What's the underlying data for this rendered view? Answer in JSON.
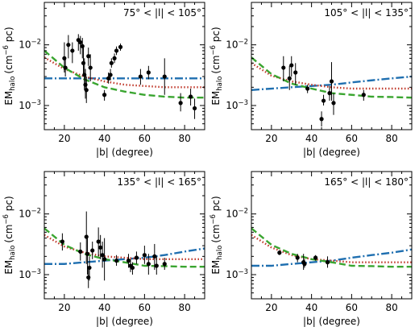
{
  "chart_data": [
    {
      "type": "scatter",
      "title": "75° < |l| < 105°",
      "xlabel": "|b| (degree)",
      "ylabel": "EM_halo (cm^-6 pc)",
      "ylabel_main": "EM",
      "ylabel_sub": "halo",
      "ylabel_units": "(cm",
      "ylabel_exp": "−6",
      "ylabel_tail": " pc)",
      "x_scale": "linear",
      "y_scale": "log",
      "xlim": [
        10,
        90
      ],
      "ylim": [
        0.0004,
        0.05
      ],
      "xticks": [
        20,
        40,
        60,
        80
      ],
      "xtick_labels": [
        "20",
        "40",
        "60",
        "80"
      ],
      "yticks": [
        0.001,
        0.01
      ],
      "ytick_base": "10",
      "ytick_exps": [
        "−3",
        "−2"
      ],
      "points": [
        {
          "x": 20,
          "y": 0.006,
          "lo": 0.0035,
          "hi": 0.011
        },
        {
          "x": 20.5,
          "y": 0.0042,
          "lo": 0.003,
          "hi": 0.006
        },
        {
          "x": 22,
          "y": 0.01,
          "lo": 0.006,
          "hi": 0.0145
        },
        {
          "x": 24,
          "y": 0.008,
          "lo": 0.005,
          "hi": 0.011
        },
        {
          "x": 27,
          "y": 0.012,
          "lo": 0.008,
          "hi": 0.015
        },
        {
          "x": 28,
          "y": 0.011,
          "lo": 0.007,
          "hi": 0.014
        },
        {
          "x": 29,
          "y": 0.0095,
          "lo": 0.006,
          "hi": 0.013
        },
        {
          "x": 29.5,
          "y": 0.005,
          "lo": 0.003,
          "hi": 0.009
        },
        {
          "x": 30,
          "y": 0.0032,
          "lo": 0.0018,
          "hi": 0.006
        },
        {
          "x": 30.5,
          "y": 0.0022,
          "lo": 0.0013,
          "hi": 0.004
        },
        {
          "x": 31,
          "y": 0.0018,
          "lo": 0.0011,
          "hi": 0.003
        },
        {
          "x": 32,
          "y": 0.0065,
          "lo": 0.0045,
          "hi": 0.009
        },
        {
          "x": 33,
          "y": 0.0042,
          "lo": 0.0025,
          "hi": 0.007
        },
        {
          "x": 40,
          "y": 0.0015,
          "lo": 0.0012,
          "hi": 0.0018
        },
        {
          "x": 42,
          "y": 0.0028,
          "lo": 0.0023,
          "hi": 0.0035
        },
        {
          "x": 43,
          "y": 0.0032,
          "lo": 0.0026,
          "hi": 0.004
        },
        {
          "x": 43.5,
          "y": 0.005,
          "lo": 0.0042,
          "hi": 0.006
        },
        {
          "x": 45,
          "y": 0.006,
          "lo": 0.005,
          "hi": 0.0072
        },
        {
          "x": 46,
          "y": 0.008,
          "lo": 0.0068,
          "hi": 0.0094
        },
        {
          "x": 48,
          "y": 0.0092,
          "lo": 0.008,
          "hi": 0.0105
        },
        {
          "x": 58,
          "y": 0.003,
          "lo": 0.0022,
          "hi": 0.004
        },
        {
          "x": 62,
          "y": 0.0035,
          "lo": 0.0027,
          "hi": 0.0045
        },
        {
          "x": 70,
          "y": 0.003,
          "lo": 0.0015,
          "hi": 0.006
        },
        {
          "x": 78,
          "y": 0.0011,
          "lo": 0.0008,
          "hi": 0.0016
        },
        {
          "x": 83,
          "y": 0.0014,
          "lo": 0.001,
          "hi": 0.0019
        },
        {
          "x": 85,
          "y": 0.0009,
          "lo": 0.0006,
          "hi": 0.0013
        }
      ],
      "model_lines": [
        {
          "style": "dash-dot",
          "color": "#1f6fb0",
          "y": [
            0.0028,
            0.0028,
            0.0028,
            0.0028,
            0.0028,
            0.0028,
            0.0028,
            0.0028,
            0.0028
          ]
        },
        {
          "style": "dotted",
          "color": "#c0392b",
          "y": [
            0.0062,
            0.004,
            0.003,
            0.0025,
            0.0022,
            0.0021,
            0.002,
            0.002,
            0.002
          ]
        },
        {
          "style": "dashed",
          "color": "#3aa530",
          "y": [
            0.008,
            0.0042,
            0.0027,
            0.002,
            0.0017,
            0.0015,
            0.0014,
            0.00135,
            0.00135
          ]
        }
      ]
    },
    {
      "type": "scatter",
      "title": "105° < |l| < 135°",
      "xlabel": "|b| (degree)",
      "ylabel": "EM_halo (cm^-6 pc)",
      "ylabel_main": "EM",
      "ylabel_sub": "halo",
      "ylabel_units": "(cm",
      "ylabel_exp": "−6",
      "ylabel_tail": " pc)",
      "x_scale": "linear",
      "y_scale": "log",
      "xlim": [
        10,
        90
      ],
      "ylim": [
        0.0004,
        0.05
      ],
      "xticks": [
        20,
        40,
        60,
        80
      ],
      "xtick_labels": [
        "20",
        "40",
        "60",
        "80"
      ],
      "yticks": [
        0.001,
        0.01
      ],
      "ytick_base": "10",
      "ytick_exps": [
        "−3",
        "−2"
      ],
      "points": [
        {
          "x": 26,
          "y": 0.0042,
          "lo": 0.0025,
          "hi": 0.0065
        },
        {
          "x": 29,
          "y": 0.0028,
          "lo": 0.0018,
          "hi": 0.0045
        },
        {
          "x": 30,
          "y": 0.0046,
          "lo": 0.003,
          "hi": 0.0065
        },
        {
          "x": 32,
          "y": 0.0035,
          "lo": 0.0022,
          "hi": 0.005
        },
        {
          "x": 38,
          "y": 0.0019,
          "lo": 0.0016,
          "hi": 0.0022
        },
        {
          "x": 45,
          "y": 0.0006,
          "lo": 0.00045,
          "hi": 0.0008
        },
        {
          "x": 46,
          "y": 0.0012,
          "lo": 0.001,
          "hi": 0.0015
        },
        {
          "x": 49,
          "y": 0.0016,
          "lo": 0.0012,
          "hi": 0.0021
        },
        {
          "x": 50,
          "y": 0.0025,
          "lo": 0.0012,
          "hi": 0.0052
        },
        {
          "x": 51,
          "y": 0.0011,
          "lo": 0.0007,
          "hi": 0.0016
        },
        {
          "x": 66,
          "y": 0.0015,
          "lo": 0.0012,
          "hi": 0.0018
        }
      ],
      "model_lines": [
        {
          "style": "dash-dot",
          "color": "#1f6fb0",
          "y": [
            0.0018,
            0.0019,
            0.002,
            0.0021,
            0.0022,
            0.0024,
            0.0026,
            0.0028,
            0.003
          ]
        },
        {
          "style": "dotted",
          "color": "#c0392b",
          "y": [
            0.005,
            0.0031,
            0.0025,
            0.0022,
            0.002,
            0.0019,
            0.0019,
            0.0019,
            0.0019
          ]
        },
        {
          "style": "dashed",
          "color": "#3aa530",
          "y": [
            0.0062,
            0.0033,
            0.0023,
            0.0019,
            0.0016,
            0.0015,
            0.0014,
            0.00138,
            0.00135
          ]
        }
      ]
    },
    {
      "type": "scatter",
      "title": "135° < |l| < 165°",
      "xlabel": "|b| (degree)",
      "ylabel": "EM_halo (cm^-6 pc)",
      "ylabel_main": "EM",
      "ylabel_sub": "halo",
      "ylabel_units": "(cm",
      "ylabel_exp": "−6",
      "ylabel_tail": " pc)",
      "x_scale": "linear",
      "y_scale": "log",
      "xlim": [
        10,
        90
      ],
      "ylim": [
        0.0004,
        0.05
      ],
      "xticks": [
        20,
        40,
        60,
        80
      ],
      "xtick_labels": [
        "20",
        "40",
        "60",
        "80"
      ],
      "yticks": [
        0.001,
        0.01
      ],
      "ytick_base": "10",
      "ytick_exps": [
        "−3",
        "−2"
      ],
      "points": [
        {
          "x": 19,
          "y": 0.0035,
          "lo": 0.0025,
          "hi": 0.0048
        },
        {
          "x": 28,
          "y": 0.0024,
          "lo": 0.0017,
          "hi": 0.0034
        },
        {
          "x": 31,
          "y": 0.0042,
          "lo": 0.0015,
          "hi": 0.011
        },
        {
          "x": 31.5,
          "y": 0.0022,
          "lo": 0.001,
          "hi": 0.0045
        },
        {
          "x": 32,
          "y": 0.0009,
          "lo": 0.0006,
          "hi": 0.0013
        },
        {
          "x": 32.5,
          "y": 0.0013,
          "lo": 0.0008,
          "hi": 0.002
        },
        {
          "x": 34,
          "y": 0.0025,
          "lo": 0.0018,
          "hi": 0.0035
        },
        {
          "x": 37,
          "y": 0.0035,
          "lo": 0.002,
          "hi": 0.006
        },
        {
          "x": 38,
          "y": 0.0028,
          "lo": 0.0018,
          "hi": 0.0045
        },
        {
          "x": 39,
          "y": 0.0021,
          "lo": 0.0013,
          "hi": 0.0035
        },
        {
          "x": 40,
          "y": 0.0018,
          "lo": 0.0008,
          "hi": 0.004
        },
        {
          "x": 46,
          "y": 0.0017,
          "lo": 0.0014,
          "hi": 0.0021
        },
        {
          "x": 52,
          "y": 0.0017,
          "lo": 0.0013,
          "hi": 0.0022
        },
        {
          "x": 53,
          "y": 0.0014,
          "lo": 0.0011,
          "hi": 0.0018
        },
        {
          "x": 54,
          "y": 0.0013,
          "lo": 0.001,
          "hi": 0.0016
        },
        {
          "x": 56,
          "y": 0.0019,
          "lo": 0.0015,
          "hi": 0.0024
        },
        {
          "x": 60,
          "y": 0.0021,
          "lo": 0.0015,
          "hi": 0.003
        },
        {
          "x": 62,
          "y": 0.0015,
          "lo": 0.001,
          "hi": 0.0022
        },
        {
          "x": 65,
          "y": 0.002,
          "lo": 0.0012,
          "hi": 0.0032
        },
        {
          "x": 66,
          "y": 0.0014,
          "lo": 0.001,
          "hi": 0.002
        },
        {
          "x": 70,
          "y": 0.0015,
          "lo": 0.0012,
          "hi": 0.0019
        }
      ],
      "model_lines": [
        {
          "style": "dash-dot",
          "color": "#1f6fb0",
          "y": [
            0.0015,
            0.0015,
            0.0016,
            0.0017,
            0.0018,
            0.0019,
            0.0021,
            0.0024,
            0.0027
          ]
        },
        {
          "style": "dotted",
          "color": "#c0392b",
          "y": [
            0.0045,
            0.0029,
            0.0023,
            0.002,
            0.0019,
            0.0018,
            0.0018,
            0.0018,
            0.0018
          ]
        },
        {
          "style": "dashed",
          "color": "#3aa530",
          "y": [
            0.0058,
            0.0031,
            0.0022,
            0.0018,
            0.0016,
            0.0014,
            0.00138,
            0.00135,
            0.00135
          ]
        }
      ]
    },
    {
      "type": "scatter",
      "title": "165° < |l| < 180°",
      "xlabel": "|b| (degree)",
      "ylabel": "EM_halo (cm^-6 pc)",
      "ylabel_main": "EM",
      "ylabel_sub": "halo",
      "ylabel_units": "(cm",
      "ylabel_exp": "−6",
      "ylabel_tail": " pc)",
      "x_scale": "linear",
      "y_scale": "log",
      "xlim": [
        10,
        90
      ],
      "ylim": [
        0.0004,
        0.05
      ],
      "xticks": [
        20,
        40,
        60,
        80
      ],
      "xtick_labels": [
        "20",
        "40",
        "60",
        "80"
      ],
      "yticks": [
        0.001,
        0.01
      ],
      "ytick_base": "10",
      "ytick_exps": [
        "−3",
        "−2"
      ],
      "points": [
        {
          "x": 24,
          "y": 0.0023,
          "lo": 0.0021,
          "hi": 0.0025
        },
        {
          "x": 33,
          "y": 0.0019,
          "lo": 0.0016,
          "hi": 0.0022
        },
        {
          "x": 36,
          "y": 0.0016,
          "lo": 0.0012,
          "hi": 0.0022
        },
        {
          "x": 36.5,
          "y": 0.0015,
          "lo": 0.0013,
          "hi": 0.0018
        },
        {
          "x": 42,
          "y": 0.0019,
          "lo": 0.0017,
          "hi": 0.0021
        },
        {
          "x": 48,
          "y": 0.0016,
          "lo": 0.0013,
          "hi": 0.002
        }
      ],
      "model_lines": [
        {
          "style": "dash-dot",
          "color": "#1f6fb0",
          "y": [
            0.0014,
            0.0014,
            0.0015,
            0.0016,
            0.0017,
            0.0019,
            0.0021,
            0.0023,
            0.0026
          ]
        },
        {
          "style": "dotted",
          "color": "#c0392b",
          "y": [
            0.0045,
            0.0028,
            0.0021,
            0.0018,
            0.0017,
            0.0016,
            0.0016,
            0.0016,
            0.0016
          ]
        },
        {
          "style": "dashed",
          "color": "#3aa530",
          "y": [
            0.0058,
            0.0031,
            0.0022,
            0.0018,
            0.0016,
            0.0014,
            0.00138,
            0.00135,
            0.00135
          ]
        }
      ]
    }
  ],
  "model_x": [
    10,
    20,
    30,
    40,
    50,
    60,
    70,
    80,
    90
  ],
  "colors": {
    "points": "#000000",
    "frame": "#000000"
  }
}
